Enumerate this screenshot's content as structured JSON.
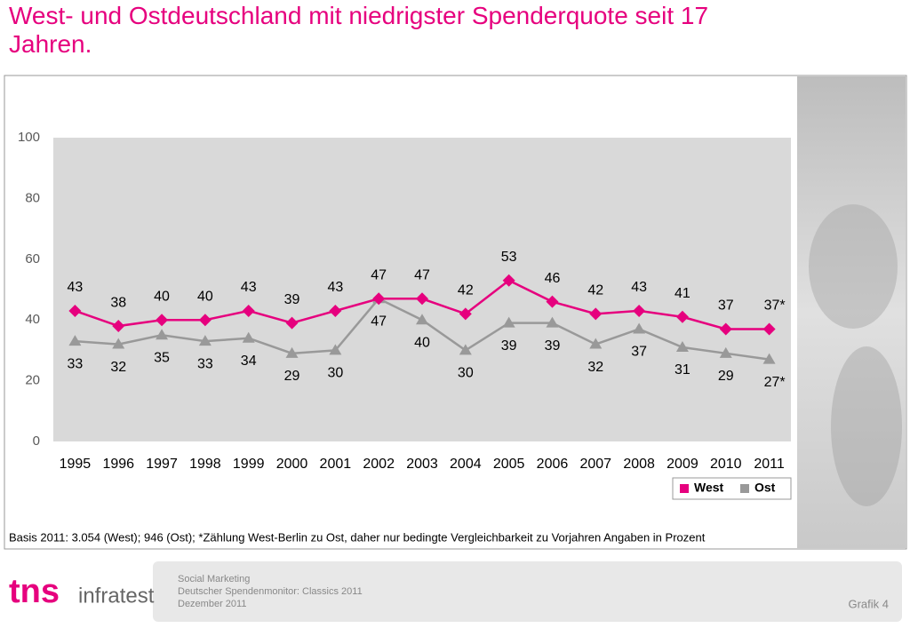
{
  "chart_data": {
    "type": "line",
    "title": "West- und Ostdeutschland mit niedrigster Spenderquote seit 17 Jahren.",
    "categories": [
      "1995",
      "1996",
      "1997",
      "1998",
      "1999",
      "2000",
      "2001",
      "2002",
      "2003",
      "2004",
      "2005",
      "2006",
      "2007",
      "2008",
      "2009",
      "2010",
      "2011"
    ],
    "series": [
      {
        "name": "West",
        "color": "#e6007e",
        "marker": "diamond",
        "values": [
          43,
          38,
          40,
          40,
          43,
          39,
          43,
          47,
          47,
          42,
          53,
          46,
          42,
          43,
          41,
          37,
          37
        ],
        "value_labels": [
          "43",
          "38",
          "40",
          "40",
          "43",
          "39",
          "43",
          "47",
          "47",
          "42",
          "53",
          "46",
          "42",
          "43",
          "41",
          "37",
          "37*"
        ]
      },
      {
        "name": "Ost",
        "color": "#999999",
        "marker": "triangle",
        "values": [
          33,
          32,
          35,
          33,
          34,
          29,
          30,
          47,
          40,
          30,
          39,
          39,
          32,
          37,
          31,
          29,
          27
        ],
        "value_labels": [
          "33",
          "32",
          "35",
          "33",
          "34",
          "29",
          "30",
          "47",
          "40",
          "30",
          "39",
          "39",
          "32",
          "37",
          "31",
          "29",
          "27*"
        ]
      }
    ],
    "ylim": [
      0,
      100
    ],
    "yticks": [
      0,
      20,
      40,
      60,
      80,
      100
    ],
    "grid": false,
    "legend": "bottom-right",
    "footnote": "Basis 2011: 3.054 (West); 946 (Ost); *Zählung West-Berlin zu Ost, daher nur bedingte Vergleichbarkeit zu Vorjahren  Angaben in Prozent"
  },
  "footer": {
    "brand": "tns",
    "brand_sub": "infratest",
    "lines": [
      "Social Marketing",
      "Deutscher  Spendenmonitor: Classics 2011",
      "Dezember 2011"
    ],
    "page": "Grafik 4"
  }
}
